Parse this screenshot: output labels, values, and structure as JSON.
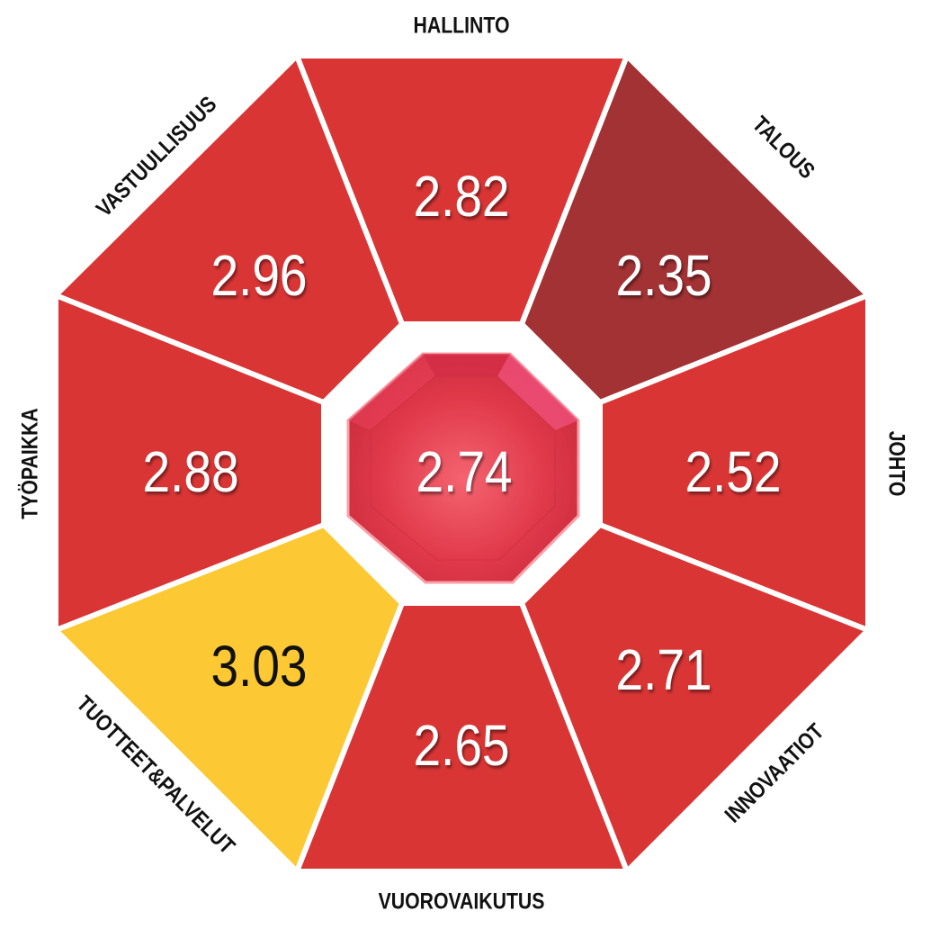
{
  "center": {
    "value": "2.74",
    "color": "#e0394a"
  },
  "segments": [
    {
      "label": "HALLINTO",
      "value": "2.82",
      "color": "#d93535",
      "text_color": "#ffffff"
    },
    {
      "label": "TALOUS",
      "value": "2.35",
      "color": "#a33234",
      "text_color": "#ffffff"
    },
    {
      "label": "JOHTO",
      "value": "2.52",
      "color": "#d93535",
      "text_color": "#ffffff"
    },
    {
      "label": "INNOVAATIOT",
      "value": "2.71",
      "color": "#d93535",
      "text_color": "#ffffff"
    },
    {
      "label": "VUOROVAIKUTUS",
      "value": "2.65",
      "color": "#d93535",
      "text_color": "#ffffff"
    },
    {
      "label": "TUOTTEET&PALVELUT",
      "value": "3.03",
      "color": "#fcc934",
      "text_color": "#111111"
    },
    {
      "label": "TYÖPAIKKA",
      "value": "2.88",
      "color": "#d93535",
      "text_color": "#ffffff"
    },
    {
      "label": "VASTUULLISUUS",
      "value": "2.96",
      "color": "#d93535",
      "text_color": "#ffffff"
    }
  ]
}
